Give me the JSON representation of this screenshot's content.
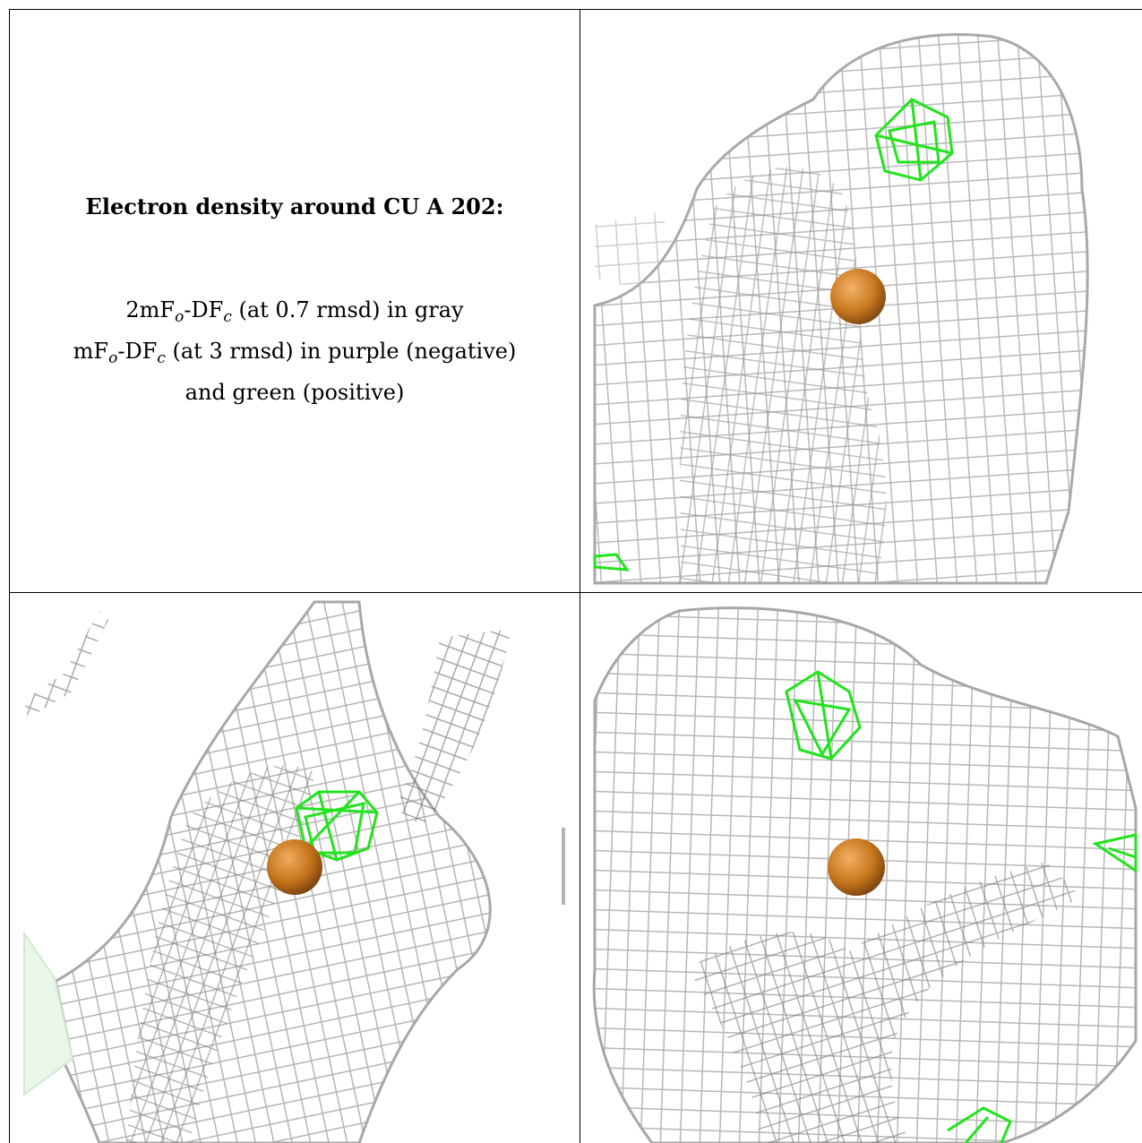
{
  "title": "Electron density around CU A 202:",
  "legend": {
    "line1": {
      "pre": "2mF",
      "sub1": "o",
      "mid": "-DF",
      "sub2": "c",
      "post": " (at 0.7 rmsd) in gray"
    },
    "line2": {
      "pre": "mF",
      "sub1": "o",
      "mid": "-DF",
      "sub2": "c",
      "post": " (at 3 rmsd) in purple (negative)"
    },
    "line3": "and green (positive)"
  },
  "colors": {
    "density_2fofc": "#b4b4b4",
    "density_2fofc_dark": "#6e6e6e",
    "diff_positive": "#22e31e",
    "atom_cu": "#c9781e",
    "border": "#000000"
  },
  "views": [
    {
      "name": "view-1",
      "atom": "CU A 202"
    },
    {
      "name": "view-2",
      "atom": "CU A 202"
    },
    {
      "name": "view-3",
      "atom": "CU A 202"
    }
  ]
}
